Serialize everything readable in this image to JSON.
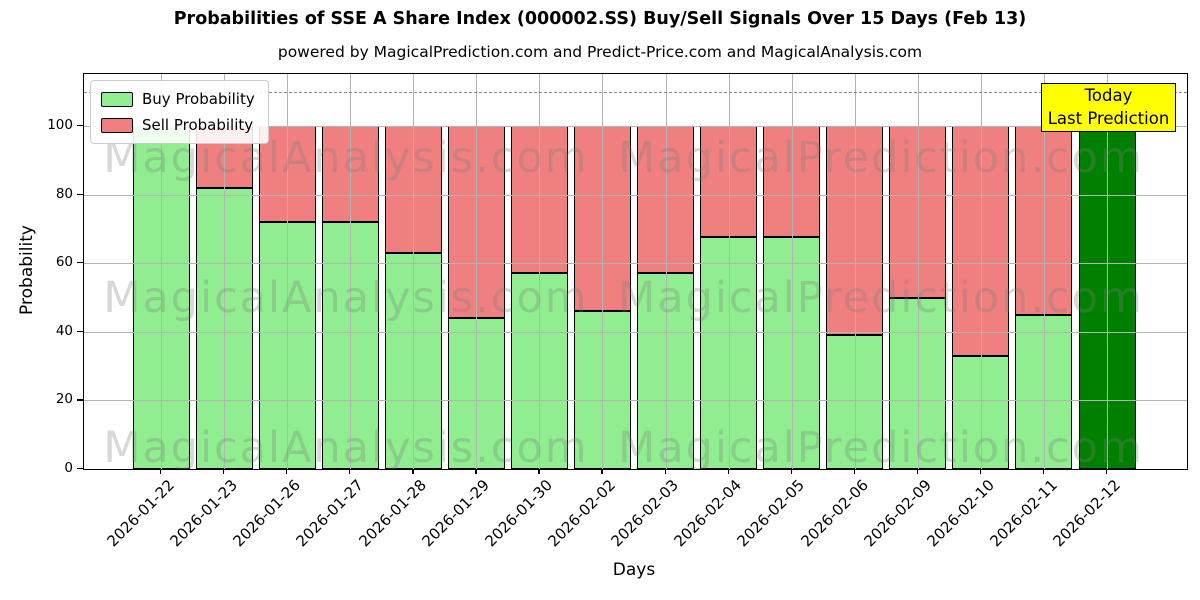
{
  "figure": {
    "title": "Probabilities of SSE A Share Index (000002.SS) Buy/Sell Signals Over 15 Days (Feb 13)",
    "subtitle": "powered by MagicalPrediction.com and Predict-Price.com and MagicalAnalysis.com"
  },
  "legend": {
    "items": [
      {
        "label": "Buy Probability",
        "color": "#90ee90"
      },
      {
        "label": "Sell Probability",
        "color": "#f08080"
      }
    ]
  },
  "annotation_box": {
    "line1": "Today",
    "line2": "Last Prediction",
    "bg_color": "#ffff00"
  },
  "watermarks": {
    "left": "MagicalAnalysis.com",
    "right": "MagicalPrediction.com"
  },
  "chart_data": {
    "type": "bar",
    "stacked": true,
    "title": "Probabilities of SSE A Share Index (000002.SS) Buy/Sell Signals Over 15 Days (Feb 13)",
    "subtitle": "powered by MagicalPrediction.com and Predict-Price.com and MagicalAnalysis.com",
    "xlabel": "Days",
    "ylabel": "Probability",
    "ylim": [
      0,
      115
    ],
    "yticks": [
      0,
      20,
      40,
      60,
      80,
      100
    ],
    "grid": true,
    "legend_position": "upper left",
    "dashed_line_y": 110,
    "categories": [
      "2026-01-22",
      "2026-01-23",
      "2026-01-26",
      "2026-01-27",
      "2026-01-28",
      "2026-01-29",
      "2026-01-30",
      "2026-02-02",
      "2026-02-03",
      "2026-02-04",
      "2026-02-05",
      "2026-02-06",
      "2026-02-09",
      "2026-02-10",
      "2026-02-11",
      "2026-02-12"
    ],
    "series": [
      {
        "name": "Buy Probability",
        "color": "#90ee90",
        "values": [
          100,
          82,
          72,
          72,
          63,
          44,
          57,
          46,
          57,
          67.5,
          67.5,
          39,
          50,
          33,
          45,
          100
        ]
      },
      {
        "name": "Sell Probability",
        "color": "#f08080",
        "values": [
          0,
          18,
          28,
          28,
          37,
          56,
          43,
          54,
          43,
          32.5,
          32.5,
          61,
          50,
          67,
          55,
          0
        ]
      }
    ],
    "final_bar": {
      "category": "2026-02-12",
      "color": "#008000",
      "note": "Today / Last Prediction"
    }
  }
}
